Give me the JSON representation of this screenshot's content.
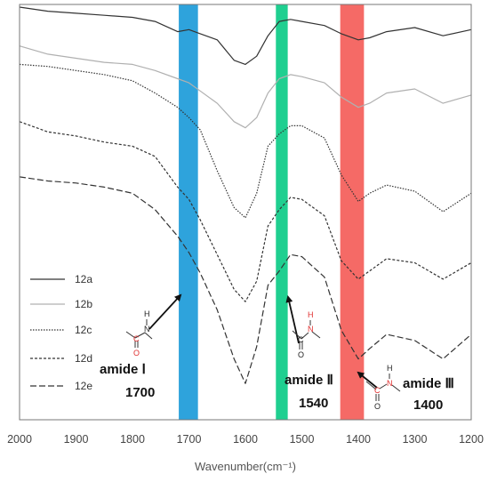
{
  "chart_data": {
    "type": "line",
    "xlabel": "Wavenumber(cm⁻¹)",
    "ylabel": "",
    "title": "",
    "xlim": [
      2000,
      1200
    ],
    "x_reversed": true,
    "x_ticks": [
      2000,
      1900,
      1800,
      1700,
      1600,
      1500,
      1400,
      1300,
      1200
    ],
    "y_ticks_shown": false,
    "grid": false,
    "legend_position": "bottom-left",
    "series": [
      {
        "name": "12a",
        "line_style": "solid",
        "color": "#333333",
        "x": [
          2000,
          1950,
          1900,
          1850,
          1800,
          1760,
          1720,
          1700,
          1680,
          1650,
          1620,
          1600,
          1580,
          1560,
          1540,
          1520,
          1500,
          1460,
          1430,
          1400,
          1380,
          1350,
          1300,
          1250,
          1200
        ],
        "y": [
          1.0,
          0.99,
          0.985,
          0.98,
          0.975,
          0.965,
          0.94,
          0.945,
          0.935,
          0.92,
          0.87,
          0.86,
          0.88,
          0.93,
          0.965,
          0.97,
          0.965,
          0.955,
          0.935,
          0.92,
          0.925,
          0.94,
          0.95,
          0.93,
          0.945
        ]
      },
      {
        "name": "12b",
        "line_style": "solid",
        "color": "#b0b0b0",
        "x": [
          2000,
          1950,
          1900,
          1850,
          1800,
          1760,
          1720,
          1700,
          1680,
          1650,
          1620,
          1600,
          1580,
          1560,
          1540,
          1520,
          1500,
          1460,
          1430,
          1400,
          1380,
          1350,
          1300,
          1250,
          1200
        ],
        "y": [
          0.905,
          0.885,
          0.875,
          0.865,
          0.86,
          0.845,
          0.825,
          0.815,
          0.795,
          0.765,
          0.72,
          0.705,
          0.73,
          0.79,
          0.825,
          0.835,
          0.83,
          0.815,
          0.78,
          0.755,
          0.765,
          0.79,
          0.8,
          0.765,
          0.785
        ]
      },
      {
        "name": "12c",
        "line_style": "dotted",
        "color": "#333333",
        "x": [
          2000,
          1950,
          1900,
          1850,
          1800,
          1760,
          1720,
          1700,
          1680,
          1650,
          1620,
          1600,
          1580,
          1560,
          1540,
          1520,
          1500,
          1460,
          1430,
          1400,
          1380,
          1350,
          1300,
          1250,
          1200
        ],
        "y": [
          0.86,
          0.855,
          0.845,
          0.835,
          0.82,
          0.79,
          0.755,
          0.73,
          0.7,
          0.6,
          0.51,
          0.485,
          0.545,
          0.66,
          0.69,
          0.71,
          0.71,
          0.68,
          0.59,
          0.525,
          0.545,
          0.565,
          0.55,
          0.5,
          0.545
        ]
      },
      {
        "name": "12d",
        "line_style": "dashed",
        "color": "#333333",
        "x": [
          2000,
          1950,
          1900,
          1850,
          1800,
          1760,
          1720,
          1700,
          1680,
          1650,
          1620,
          1600,
          1580,
          1560,
          1540,
          1520,
          1500,
          1460,
          1430,
          1400,
          1380,
          1350,
          1300,
          1250,
          1200
        ],
        "y": [
          0.72,
          0.695,
          0.685,
          0.67,
          0.66,
          0.635,
          0.56,
          0.53,
          0.48,
          0.395,
          0.31,
          0.28,
          0.33,
          0.465,
          0.505,
          0.535,
          0.53,
          0.49,
          0.38,
          0.335,
          0.355,
          0.385,
          0.375,
          0.335,
          0.375
        ]
      },
      {
        "name": "12e",
        "line_style": "long-dashed",
        "color": "#333333",
        "x": [
          2000,
          1950,
          1900,
          1850,
          1800,
          1760,
          1720,
          1700,
          1680,
          1650,
          1620,
          1600,
          1580,
          1560,
          1540,
          1520,
          1500,
          1460,
          1430,
          1400,
          1380,
          1350,
          1300,
          1250,
          1200
        ],
        "y": [
          0.585,
          0.575,
          0.57,
          0.56,
          0.545,
          0.505,
          0.44,
          0.4,
          0.35,
          0.26,
          0.14,
          0.08,
          0.17,
          0.32,
          0.355,
          0.395,
          0.39,
          0.34,
          0.21,
          0.14,
          0.165,
          0.2,
          0.185,
          0.14,
          0.2
        ]
      }
    ],
    "highlight_bands": [
      {
        "label": "amide Ⅰ",
        "value": "1700",
        "x_range": [
          1718,
          1684
        ],
        "color": "#2ea3dc"
      },
      {
        "label": "amide Ⅱ",
        "value": "1540",
        "x_range": [
          1546,
          1525
        ],
        "color": "#1fcf90"
      },
      {
        "label": "amide Ⅲ",
        "value": "1400",
        "x_range": [
          1432,
          1390
        ],
        "color": "#f56a66"
      }
    ],
    "structure_atoms": {
      "H": "H",
      "N": "N",
      "C": "C",
      "O": "O"
    }
  }
}
